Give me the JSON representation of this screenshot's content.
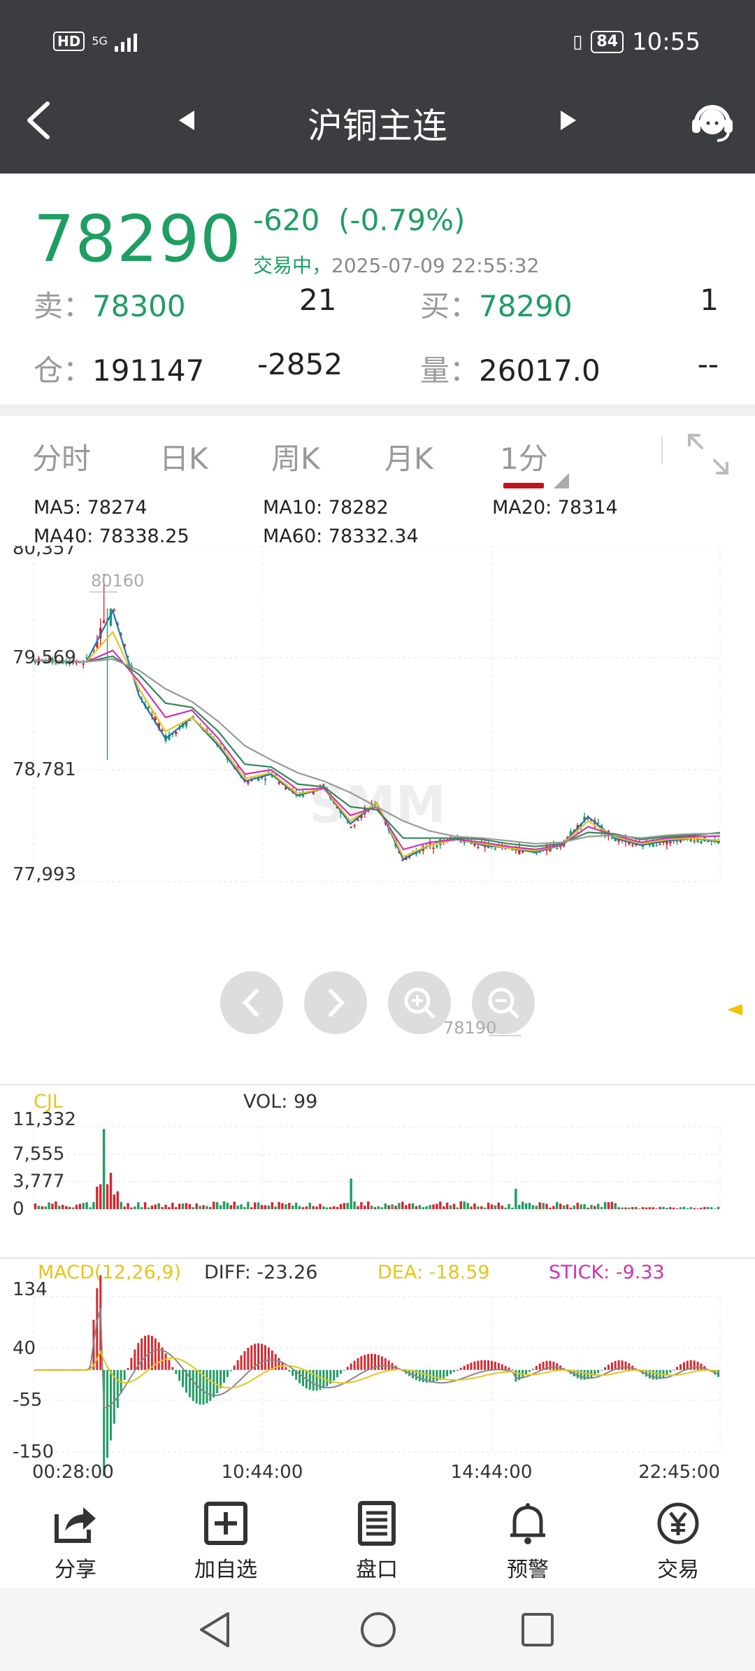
{
  "status_bar": {
    "hd": "HD",
    "network": "5G",
    "battery": "84",
    "time": "10:55"
  },
  "header": {
    "title": "沪铜主连"
  },
  "quote": {
    "last_price": "78290",
    "change": "-620",
    "change_pct": "(-0.79%)",
    "state": "交易中，",
    "timestamp": "2025-07-09 22:55:32",
    "sell_label": "卖：",
    "sell_price": "78300",
    "sell_qty": "21",
    "buy_label": "买：",
    "buy_price": "78290",
    "buy_qty": "1",
    "oi_label": "仓：",
    "open_interest": "191147",
    "oi_change": "-2852",
    "vol_label": "量：",
    "volume": "26017.0",
    "extra": "--"
  },
  "tabs": [
    {
      "label": "分时"
    },
    {
      "label": "日K"
    },
    {
      "label": "周K"
    },
    {
      "label": "月K"
    },
    {
      "label": "1分"
    }
  ],
  "ma_legend": {
    "ma5": "MA5: 78274",
    "ma10": "MA10: 78282",
    "ma20": "MA20: 78314",
    "ma40": "MA40: 78338.25",
    "ma60": "MA60: 78332.34"
  },
  "colors": {
    "up": "#d8262e",
    "down": "#1e9e62",
    "ma5": "#1a73b8",
    "ma10": "#e8c41a",
    "ma20": "#d42fb5",
    "ma40": "#2e8b57",
    "ma60": "#999999",
    "diff": "#888888",
    "dea": "#e8c41a"
  },
  "chart_data": [
    {
      "type": "line",
      "y_ticks": [
        "80,357",
        "79,569",
        "78,781",
        "77,993"
      ],
      "ylim": [
        77993,
        80357
      ],
      "x_ticks": [
        "00:28:00",
        "10:44:00",
        "14:44:00",
        "22:45:00"
      ],
      "annotations": [
        "80160",
        "78190"
      ],
      "watermark": "SMM",
      "series": [
        {
          "name": "MA5",
          "values": [
            79550,
            79545,
            79540,
            79900,
            79300,
            79000,
            79150,
            78950,
            78700,
            78750,
            78600,
            78650,
            78400,
            78550,
            78150,
            78250,
            78300,
            78250,
            78230,
            78200,
            78250,
            78450,
            78300,
            78250,
            78280,
            78300,
            78274
          ]
        },
        {
          "name": "MA10",
          "values": [
            79550,
            79545,
            79540,
            79750,
            79350,
            79050,
            79150,
            78970,
            78720,
            78760,
            78610,
            78650,
            78420,
            78550,
            78170,
            78250,
            78290,
            78260,
            78230,
            78210,
            78250,
            78420,
            78310,
            78260,
            78290,
            78300,
            78282
          ]
        },
        {
          "name": "MA20",
          "values": [
            79550,
            79545,
            79540,
            79620,
            79400,
            79150,
            79200,
            79000,
            78750,
            78780,
            78640,
            78650,
            78460,
            78520,
            78220,
            78270,
            78290,
            78270,
            78240,
            78220,
            78250,
            78380,
            78320,
            78270,
            78300,
            78310,
            78314
          ]
        },
        {
          "name": "MA40",
          "values": [
            79550,
            79545,
            79540,
            79580,
            79450,
            79250,
            79220,
            79050,
            78820,
            78800,
            78680,
            78660,
            78520,
            78500,
            78300,
            78300,
            78300,
            78290,
            78260,
            78240,
            78260,
            78340,
            78330,
            78290,
            78310,
            78320,
            78338
          ]
        },
        {
          "name": "MA60",
          "values": [
            79550,
            79545,
            79540,
            79560,
            79480,
            79350,
            79260,
            79120,
            78950,
            78850,
            78760,
            78700,
            78620,
            78520,
            78420,
            78350,
            78310,
            78300,
            78280,
            78260,
            78270,
            78310,
            78320,
            78300,
            78320,
            78330,
            78332
          ]
        }
      ]
    },
    {
      "type": "bar",
      "title": "CJL",
      "label": "VOL: 99",
      "y_ticks": [
        "11,332",
        "7,555",
        "3,777",
        "0"
      ],
      "ylim": [
        0,
        11332
      ]
    },
    {
      "type": "bar",
      "title": "MACD(12,26,9)",
      "diff_label": "DIFF: -23.26",
      "dea_label": "DEA: -18.59",
      "stick_label": "STICK: -9.33",
      "y_ticks": [
        "134",
        "40",
        "-55",
        "-150"
      ],
      "ylim": [
        -150,
        134
      ]
    }
  ],
  "toolbar": [
    {
      "label": "分享",
      "icon": "share-icon"
    },
    {
      "label": "加自选",
      "icon": "add-watchlist-icon"
    },
    {
      "label": "盘口",
      "icon": "order-book-icon"
    },
    {
      "label": "预警",
      "icon": "bell-icon"
    },
    {
      "label": "交易",
      "icon": "yuan-icon"
    }
  ]
}
